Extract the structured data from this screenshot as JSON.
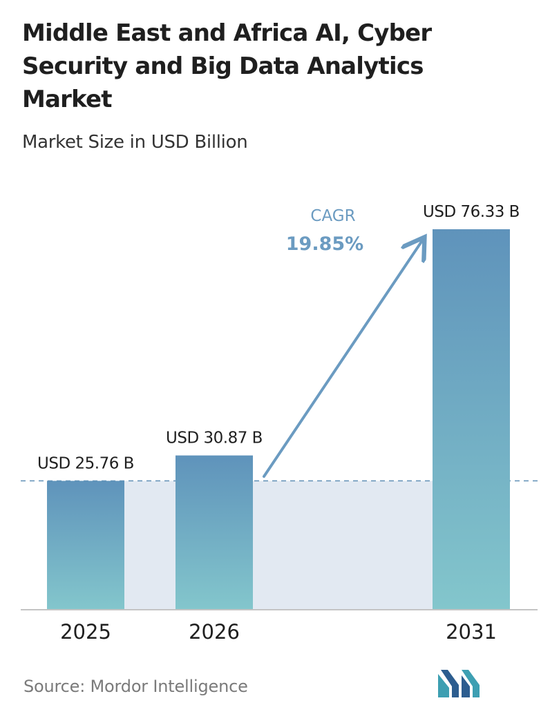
{
  "title": "Middle East and Africa AI, Cyber Security and Big Data Analytics Market",
  "subtitle": "Market Size in USD Billion",
  "source": "Source:  Mordor Intelligence",
  "chart_data": {
    "type": "bar",
    "categories": [
      "2025",
      "2026",
      "2031"
    ],
    "values": [
      25.76,
      30.87,
      76.33
    ],
    "value_labels": [
      "USD 25.76 B",
      "USD 30.87 B",
      "USD 76.33 B"
    ],
    "ylim": [
      0,
      76.33
    ],
    "annotation": {
      "label": "CAGR",
      "value": "19.85%"
    },
    "reference_line": 25.76,
    "grid": false,
    "legend": "none"
  },
  "colors": {
    "bar_top": "#5f93bb",
    "bar_bottom": "#83c6cc",
    "band": "#e2e9f2",
    "arrow": "#6b9bc1",
    "cagr_label": "#6b9bc1",
    "dashed_line": "#5f8fb5",
    "axis": "#c4c4c4",
    "logo_teal": "#3d9fb2",
    "logo_blue": "#2c5d8f"
  },
  "logo_icon": "mordor-intelligence-logo"
}
